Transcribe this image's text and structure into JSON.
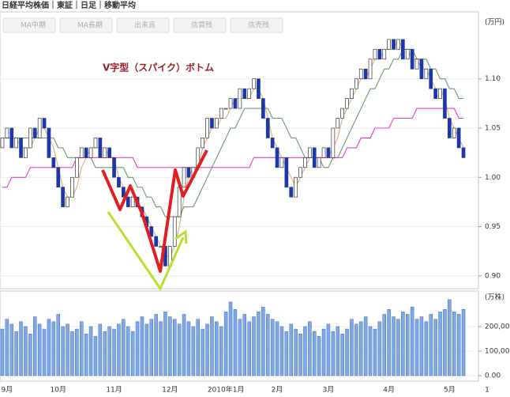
{
  "toolbar": [
    "MA中期",
    "MA長期",
    "出来高",
    "信買残",
    "信売残"
  ],
  "chart_data": {
    "type": "candlestick",
    "title": "日経平均株価｜東証｜日足｜移動平均",
    "annotation": "V字型（スパイク）ボトム",
    "categories": [
      null,
      "9月",
      null,
      null,
      null,
      null,
      null,
      null,
      null,
      null,
      null,
      null,
      "10月",
      null,
      null,
      null,
      null,
      null,
      null,
      null,
      null,
      null,
      null,
      null,
      "11月",
      null,
      null,
      null,
      null,
      null,
      null,
      null,
      null,
      null,
      null,
      null,
      "12月",
      null,
      null,
      null,
      null,
      null,
      null,
      null,
      null,
      null,
      null,
      null,
      "2010年1月",
      null,
      null,
      null,
      null,
      null,
      null,
      null,
      null,
      null,
      null,
      "2月",
      null,
      null,
      null,
      null,
      null,
      null,
      null,
      null,
      null,
      null,
      "3月",
      null,
      null,
      null,
      null,
      null,
      null,
      null,
      null,
      null,
      null,
      null,
      null,
      "4月",
      null,
      null,
      null,
      null,
      null,
      null,
      null,
      null,
      null,
      null,
      null,
      null,
      "5月",
      null,
      null,
      null
    ],
    "x_end_label": "1",
    "open": [
      1.03,
      1.04,
      1.05,
      1.03,
      1.04,
      1.02,
      1.03,
      1.05,
      1.04,
      1.06,
      1.05,
      1.02,
      1.01,
      0.99,
      0.97,
      0.98,
      1.0,
      1.02,
      1.03,
      1.02,
      1.03,
      1.04,
      1.02,
      1.03,
      1.02,
      1.0,
      0.99,
      0.98,
      0.97,
      0.98,
      0.97,
      0.96,
      0.95,
      0.94,
      0.93,
      0.93,
      0.91,
      0.93,
      0.96,
      0.99,
      1.01,
      1.0,
      1.01,
      1.03,
      1.04,
      1.06,
      1.05,
      1.06,
      1.07,
      1.07,
      1.08,
      1.07,
      1.09,
      1.08,
      1.09,
      1.1,
      1.08,
      1.06,
      1.04,
      1.03,
      1.01,
      1.02,
      0.99,
      0.98,
      1.0,
      1.01,
      1.02,
      1.03,
      1.01,
      1.02,
      1.03,
      1.02,
      1.05,
      1.06,
      1.07,
      1.08,
      1.09,
      1.1,
      1.11,
      1.1,
      1.12,
      1.13,
      1.12,
      1.13,
      1.14,
      1.13,
      1.14,
      1.12,
      1.13,
      1.11,
      1.12,
      1.1,
      1.11,
      1.09,
      1.08,
      1.09,
      1.06,
      1.04,
      1.05,
      1.03
    ],
    "close": [
      1.04,
      1.05,
      1.03,
      1.04,
      1.02,
      1.03,
      1.05,
      1.04,
      1.06,
      1.05,
      1.02,
      1.01,
      0.99,
      0.97,
      0.98,
      1.0,
      1.02,
      1.03,
      1.02,
      1.03,
      1.04,
      1.02,
      1.03,
      1.02,
      1.0,
      0.99,
      0.98,
      0.97,
      0.98,
      0.97,
      0.96,
      0.95,
      0.94,
      0.93,
      0.93,
      0.91,
      0.93,
      0.96,
      0.99,
      1.01,
      1.0,
      1.01,
      1.03,
      1.04,
      1.06,
      1.05,
      1.06,
      1.07,
      1.07,
      1.08,
      1.07,
      1.09,
      1.08,
      1.09,
      1.1,
      1.08,
      1.06,
      1.04,
      1.03,
      1.01,
      1.02,
      0.99,
      0.98,
      1.0,
      1.01,
      1.02,
      1.03,
      1.01,
      1.02,
      1.03,
      1.02,
      1.05,
      1.06,
      1.07,
      1.08,
      1.09,
      1.1,
      1.11,
      1.1,
      1.12,
      1.13,
      1.12,
      1.13,
      1.14,
      1.13,
      1.14,
      1.12,
      1.13,
      1.11,
      1.12,
      1.1,
      1.11,
      1.09,
      1.08,
      1.09,
      1.06,
      1.04,
      1.05,
      1.03,
      1.02
    ],
    "up_color": "#ffffff",
    "down_color": "#1c38a8",
    "series": [
      {
        "color": "#d2b07a",
        "values": [
          1.04,
          1.04,
          1.04,
          1.04,
          1.03,
          1.03,
          1.03,
          1.04,
          1.05,
          1.05,
          1.04,
          1.03,
          1.01,
          0.99,
          0.98,
          0.98,
          0.99,
          1.01,
          1.02,
          1.03,
          1.03,
          1.03,
          1.03,
          1.02,
          1.02,
          1.0,
          0.99,
          0.98,
          0.98,
          0.97,
          0.97,
          0.96,
          0.95,
          0.94,
          0.93,
          0.92,
          0.92,
          0.93,
          0.95,
          0.98,
          1.0,
          1.01,
          1.01,
          1.03,
          1.04,
          1.05,
          1.05,
          1.06,
          1.06,
          1.07,
          1.08,
          1.08,
          1.08,
          1.08,
          1.09,
          1.09,
          1.08,
          1.06,
          1.04,
          1.03,
          1.02,
          1.01,
          1.0,
          0.99,
          1.0,
          1.01,
          1.02,
          1.02,
          1.02,
          1.02,
          1.02,
          1.03,
          1.04,
          1.06,
          1.07,
          1.08,
          1.09,
          1.1,
          1.1,
          1.11,
          1.12,
          1.12,
          1.13,
          1.13,
          1.13,
          1.14,
          1.13,
          1.13,
          1.12,
          1.12,
          1.11,
          1.11,
          1.1,
          1.09,
          1.09,
          1.08,
          1.06,
          1.05,
          1.04,
          1.03
        ]
      },
      {
        "color": "#6a9a6a",
        "values": [
          1.04,
          1.04,
          1.04,
          1.04,
          1.04,
          1.04,
          1.04,
          1.04,
          1.04,
          1.04,
          1.04,
          1.04,
          1.03,
          1.03,
          1.02,
          1.02,
          1.02,
          1.02,
          1.02,
          1.02,
          1.01,
          1.01,
          1.01,
          1.01,
          1.01,
          1.01,
          1.01,
          1.0,
          1.0,
          0.99,
          0.99,
          0.98,
          0.98,
          0.97,
          0.97,
          0.96,
          0.96,
          0.96,
          0.96,
          0.97,
          0.97,
          0.97,
          0.98,
          0.99,
          1.0,
          1.01,
          1.02,
          1.03,
          1.04,
          1.05,
          1.05,
          1.06,
          1.07,
          1.07,
          1.07,
          1.07,
          1.07,
          1.07,
          1.06,
          1.06,
          1.06,
          1.05,
          1.04,
          1.04,
          1.03,
          1.02,
          1.02,
          1.02,
          1.02,
          1.01,
          1.01,
          1.02,
          1.02,
          1.03,
          1.04,
          1.05,
          1.06,
          1.07,
          1.08,
          1.09,
          1.09,
          1.1,
          1.11,
          1.11,
          1.12,
          1.12,
          1.13,
          1.13,
          1.13,
          1.12,
          1.12,
          1.12,
          1.11,
          1.11,
          1.1,
          1.1,
          1.09,
          1.09,
          1.08,
          1.08
        ]
      },
      {
        "color": "#e040c8",
        "values": [
          0.99,
          0.99,
          1.0,
          1.0,
          1.0,
          1.0,
          1.01,
          1.01,
          1.01,
          1.01,
          1.01,
          1.01,
          1.01,
          1.01,
          1.01,
          1.01,
          1.02,
          1.02,
          1.02,
          1.02,
          1.02,
          1.02,
          1.02,
          1.02,
          1.02,
          1.02,
          1.02,
          1.02,
          1.02,
          1.01,
          1.01,
          1.01,
          1.01,
          1.01,
          1.01,
          1.01,
          1.01,
          1.01,
          1.01,
          1.01,
          1.01,
          1.01,
          1.01,
          1.01,
          1.01,
          1.01,
          1.01,
          1.01,
          1.01,
          1.01,
          1.01,
          1.01,
          1.01,
          1.01,
          1.02,
          1.02,
          1.02,
          1.02,
          1.02,
          1.02,
          1.02,
          1.02,
          1.02,
          1.02,
          1.02,
          1.02,
          1.02,
          1.02,
          1.02,
          1.02,
          1.02,
          1.02,
          1.02,
          1.02,
          1.03,
          1.03,
          1.03,
          1.04,
          1.04,
          1.04,
          1.05,
          1.05,
          1.05,
          1.05,
          1.06,
          1.06,
          1.06,
          1.06,
          1.06,
          1.07,
          1.07,
          1.07,
          1.07,
          1.07,
          1.07,
          1.07,
          1.07,
          1.07,
          1.06,
          1.06
        ]
      }
    ],
    "ylim": [
      0.887,
      1.168
    ],
    "yticks": [
      {
        "value": 0.9,
        "label": "0.90"
      },
      0.95,
      {
        "value": 1,
        "label": "1.00"
      },
      1.05,
      {
        "value": 1.1,
        "label": "1.10"
      }
    ],
    "y_unit": "(万円)",
    "volume": {
      "color": "#7ea9e6",
      "values": [
        190000,
        230000,
        210000,
        180000,
        220000,
        200000,
        170000,
        240000,
        210000,
        190000,
        230000,
        220000,
        250000,
        200000,
        210000,
        180000,
        190000,
        220000,
        170000,
        200000,
        160000,
        210000,
        180000,
        200000,
        190000,
        210000,
        230000,
        200000,
        180000,
        220000,
        240000,
        210000,
        230000,
        250000,
        220000,
        260000,
        240000,
        230000,
        210000,
        250000,
        220000,
        200000,
        230000,
        190000,
        210000,
        240000,
        220000,
        200000,
        260000,
        300000,
        270000,
        230000,
        250000,
        220000,
        240000,
        260000,
        280000,
        250000,
        230000,
        220000,
        200000,
        180000,
        210000,
        190000,
        170000,
        200000,
        220000,
        180000,
        160000,
        190000,
        210000,
        180000,
        200000,
        170000,
        190000,
        230000,
        210000,
        220000,
        240000,
        200000,
        190000,
        220000,
        250000,
        270000,
        240000,
        230000,
        260000,
        250000,
        280000,
        230000,
        240000,
        220000,
        250000,
        230000,
        260000,
        270000,
        310000,
        260000,
        250000,
        270000
      ],
      "ylim": [
        -22600,
        345000
      ],
      "yticks": [
        {
          "value": 0,
          "label": "0.00"
        },
        {
          "value": 100000,
          "label": "100,000"
        },
        {
          "value": 200000,
          "label": "200,000"
        }
      ],
      "unit": "(万株)"
    }
  }
}
